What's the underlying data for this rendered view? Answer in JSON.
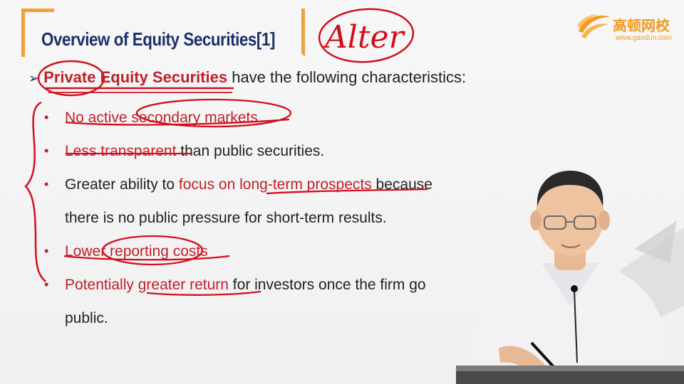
{
  "slide": {
    "title": "Overview of Equity Securities[1]",
    "handwriting": "Alter",
    "logo": {
      "cn": "高顿网校",
      "url": "www.gaodun.com"
    },
    "intro": {
      "arrow": "➢",
      "highlight": "Private Equity Securities",
      "rest": " have the following characteristics:"
    },
    "bullets": [
      {
        "segments": [
          {
            "t": "No active secondary markets",
            "c": "red"
          }
        ]
      },
      {
        "segments": [
          {
            "t": "Less transparent",
            "c": "red"
          },
          {
            "t": " than public securities.",
            "c": ""
          }
        ]
      },
      {
        "segments": [
          {
            "t": "Greater ability to ",
            "c": ""
          },
          {
            "t": "focus on long-term prospects",
            "c": "red"
          },
          {
            "t": " because",
            "c": ""
          }
        ]
      },
      {
        "cont": true,
        "segments": [
          {
            "t": "there is no public pressure for short-term results.",
            "c": ""
          }
        ]
      },
      {
        "segments": [
          {
            "t": "Lower reporting costs",
            "c": "red"
          }
        ]
      },
      {
        "segments": [
          {
            "t": "Potentially ",
            "c": "red"
          },
          {
            "t": "greater return",
            "c": "red"
          },
          {
            "t": " for investors once the firm go",
            "c": ""
          }
        ]
      },
      {
        "cont": true,
        "segments": [
          {
            "t": "public.",
            "c": ""
          }
        ]
      }
    ],
    "bullet_symbol": "•"
  },
  "colors": {
    "accent": "#f0a23a",
    "title": "#1e2f6a",
    "highlight": "#c0202a",
    "ink": "#d0101e"
  }
}
